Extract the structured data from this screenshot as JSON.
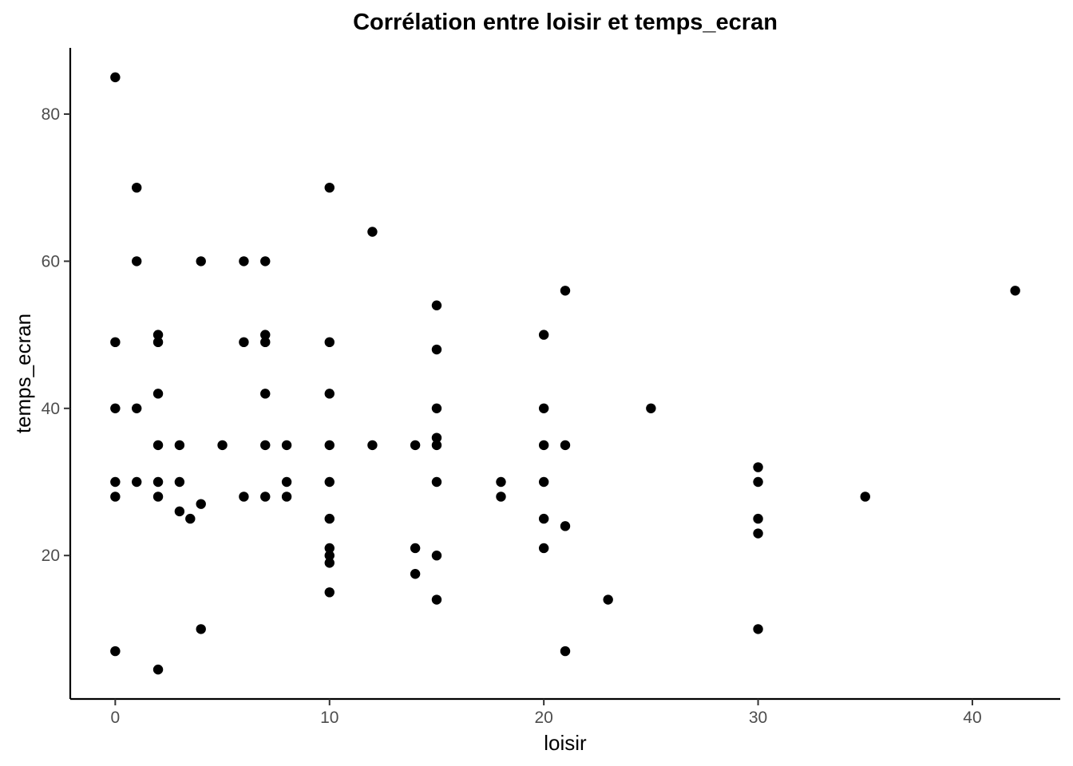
{
  "chart_data": {
    "type": "scatter",
    "title": "Corrélation entre loisir et temps_ecran",
    "xlabel": "loisir",
    "ylabel": "temps_ecran",
    "xlim": [
      -2.1,
      44.1
    ],
    "ylim": [
      0.5,
      89
    ],
    "xticks": [
      0,
      10,
      20,
      30,
      40
    ],
    "yticks": [
      20,
      40,
      60,
      80
    ],
    "grid": false,
    "legend": "none",
    "point_color": "#000000",
    "points": [
      {
        "x": 0,
        "y": 85
      },
      {
        "x": 0,
        "y": 49
      },
      {
        "x": 0,
        "y": 40
      },
      {
        "x": 0,
        "y": 30
      },
      {
        "x": 0,
        "y": 28
      },
      {
        "x": 0,
        "y": 7
      },
      {
        "x": 1,
        "y": 70
      },
      {
        "x": 1,
        "y": 60
      },
      {
        "x": 1,
        "y": 40
      },
      {
        "x": 1,
        "y": 30
      },
      {
        "x": 2,
        "y": 50
      },
      {
        "x": 2,
        "y": 49
      },
      {
        "x": 2,
        "y": 42
      },
      {
        "x": 2,
        "y": 35
      },
      {
        "x": 2,
        "y": 30
      },
      {
        "x": 2,
        "y": 28
      },
      {
        "x": 2,
        "y": 4.5
      },
      {
        "x": 3,
        "y": 35
      },
      {
        "x": 3,
        "y": 30
      },
      {
        "x": 3,
        "y": 26
      },
      {
        "x": 3.5,
        "y": 25
      },
      {
        "x": 4,
        "y": 60
      },
      {
        "x": 4,
        "y": 27
      },
      {
        "x": 4,
        "y": 10
      },
      {
        "x": 5,
        "y": 35
      },
      {
        "x": 6,
        "y": 60
      },
      {
        "x": 6,
        "y": 49
      },
      {
        "x": 6,
        "y": 28
      },
      {
        "x": 7,
        "y": 60
      },
      {
        "x": 7,
        "y": 50
      },
      {
        "x": 7,
        "y": 49
      },
      {
        "x": 7,
        "y": 42
      },
      {
        "x": 7,
        "y": 35
      },
      {
        "x": 7,
        "y": 28
      },
      {
        "x": 8,
        "y": 35
      },
      {
        "x": 8,
        "y": 30
      },
      {
        "x": 8,
        "y": 28
      },
      {
        "x": 10,
        "y": 70
      },
      {
        "x": 10,
        "y": 49
      },
      {
        "x": 10,
        "y": 42
      },
      {
        "x": 10,
        "y": 35
      },
      {
        "x": 10,
        "y": 30
      },
      {
        "x": 10,
        "y": 25
      },
      {
        "x": 10,
        "y": 21
      },
      {
        "x": 10,
        "y": 20
      },
      {
        "x": 10,
        "y": 19
      },
      {
        "x": 10,
        "y": 15
      },
      {
        "x": 12,
        "y": 64
      },
      {
        "x": 12,
        "y": 35
      },
      {
        "x": 14,
        "y": 35
      },
      {
        "x": 14,
        "y": 21
      },
      {
        "x": 14,
        "y": 17.5
      },
      {
        "x": 15,
        "y": 54
      },
      {
        "x": 15,
        "y": 48
      },
      {
        "x": 15,
        "y": 40
      },
      {
        "x": 15,
        "y": 36
      },
      {
        "x": 15,
        "y": 35
      },
      {
        "x": 15,
        "y": 30
      },
      {
        "x": 15,
        "y": 20
      },
      {
        "x": 15,
        "y": 14
      },
      {
        "x": 18,
        "y": 30
      },
      {
        "x": 18,
        "y": 28
      },
      {
        "x": 20,
        "y": 50
      },
      {
        "x": 20,
        "y": 40
      },
      {
        "x": 20,
        "y": 35
      },
      {
        "x": 20,
        "y": 30
      },
      {
        "x": 20,
        "y": 25
      },
      {
        "x": 20,
        "y": 21
      },
      {
        "x": 21,
        "y": 56
      },
      {
        "x": 21,
        "y": 35
      },
      {
        "x": 21,
        "y": 24
      },
      {
        "x": 21,
        "y": 7
      },
      {
        "x": 23,
        "y": 14
      },
      {
        "x": 25,
        "y": 40
      },
      {
        "x": 30,
        "y": 32
      },
      {
        "x": 30,
        "y": 30
      },
      {
        "x": 30,
        "y": 25
      },
      {
        "x": 30,
        "y": 23
      },
      {
        "x": 30,
        "y": 10
      },
      {
        "x": 35,
        "y": 28
      },
      {
        "x": 42,
        "y": 56
      }
    ]
  }
}
